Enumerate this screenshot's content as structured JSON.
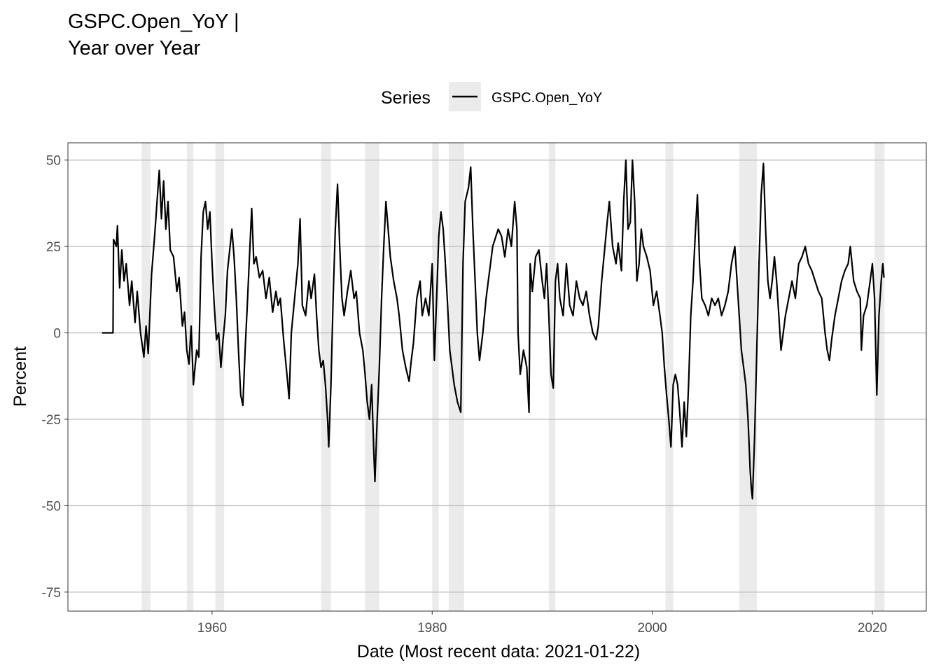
{
  "chart_data": {
    "type": "line",
    "title": [
      "GSPC.Open_YoY |",
      "Year over Year"
    ],
    "xlabel": "Date (Most recent data: 2021-01-22)",
    "ylabel": "Percent",
    "xlim": [
      1946.9,
      2024.9
    ],
    "ylim": [
      -80.5,
      55
    ],
    "xticks": [
      1960,
      1980,
      2000,
      2020
    ],
    "yticks": [
      50,
      25,
      0,
      -25,
      -50,
      -75
    ],
    "grid": "major y lines",
    "legend": {
      "title": "Series",
      "position": "top",
      "entries": [
        "GSPC.Open_YoY"
      ]
    },
    "recession_shading": [
      [
        1953.6,
        1954.4
      ],
      [
        1957.7,
        1958.3
      ],
      [
        1960.3,
        1961.1
      ],
      [
        1969.9,
        1970.8
      ],
      [
        1973.9,
        1975.2
      ],
      [
        1980.0,
        1980.6
      ],
      [
        1981.5,
        1982.9
      ],
      [
        1990.6,
        1991.2
      ],
      [
        2001.2,
        2001.9
      ],
      [
        2007.9,
        2009.5
      ],
      [
        2020.2,
        2021.1
      ]
    ],
    "series": [
      {
        "name": "GSPC.Open_YoY",
        "color": "#000000",
        "points": [
          [
            1950.0,
            0
          ],
          [
            1951.0,
            0
          ],
          [
            1951.05,
            27
          ],
          [
            1951.3,
            25
          ],
          [
            1951.4,
            31
          ],
          [
            1951.6,
            13
          ],
          [
            1951.8,
            24
          ],
          [
            1952.0,
            15
          ],
          [
            1952.2,
            20
          ],
          [
            1952.5,
            8
          ],
          [
            1952.7,
            15
          ],
          [
            1953.0,
            3
          ],
          [
            1953.2,
            12
          ],
          [
            1953.5,
            0
          ],
          [
            1953.8,
            -7
          ],
          [
            1954.0,
            2
          ],
          [
            1954.2,
            -6
          ],
          [
            1954.5,
            17
          ],
          [
            1954.8,
            29
          ],
          [
            1955.0,
            38
          ],
          [
            1955.2,
            47
          ],
          [
            1955.4,
            33
          ],
          [
            1955.6,
            44
          ],
          [
            1955.8,
            30
          ],
          [
            1956.0,
            38
          ],
          [
            1956.2,
            24
          ],
          [
            1956.5,
            22
          ],
          [
            1956.8,
            12
          ],
          [
            1957.0,
            16
          ],
          [
            1957.3,
            2
          ],
          [
            1957.5,
            6
          ],
          [
            1957.7,
            -5
          ],
          [
            1957.9,
            -9
          ],
          [
            1958.1,
            2
          ],
          [
            1958.3,
            -15
          ],
          [
            1958.6,
            -5
          ],
          [
            1958.8,
            -7
          ],
          [
            1959.0,
            22
          ],
          [
            1959.2,
            35
          ],
          [
            1959.4,
            38
          ],
          [
            1959.6,
            30
          ],
          [
            1959.8,
            35
          ],
          [
            1960.0,
            20
          ],
          [
            1960.2,
            8
          ],
          [
            1960.4,
            -2
          ],
          [
            1960.6,
            0
          ],
          [
            1960.8,
            -10
          ],
          [
            1961.0,
            -2
          ],
          [
            1961.2,
            5
          ],
          [
            1961.4,
            18
          ],
          [
            1961.6,
            24
          ],
          [
            1961.8,
            30
          ],
          [
            1962.0,
            22
          ],
          [
            1962.2,
            10
          ],
          [
            1962.4,
            -5
          ],
          [
            1962.6,
            -18
          ],
          [
            1962.8,
            -21
          ],
          [
            1963.0,
            -5
          ],
          [
            1963.2,
            8
          ],
          [
            1963.4,
            22
          ],
          [
            1963.6,
            36
          ],
          [
            1963.8,
            20
          ],
          [
            1964.0,
            22
          ],
          [
            1964.3,
            16
          ],
          [
            1964.6,
            18
          ],
          [
            1964.9,
            10
          ],
          [
            1965.2,
            16
          ],
          [
            1965.5,
            6
          ],
          [
            1965.8,
            12
          ],
          [
            1966.0,
            8
          ],
          [
            1966.2,
            10
          ],
          [
            1966.5,
            -2
          ],
          [
            1966.8,
            -12
          ],
          [
            1967.0,
            -19
          ],
          [
            1967.2,
            0
          ],
          [
            1967.5,
            10
          ],
          [
            1967.8,
            20
          ],
          [
            1968.0,
            33
          ],
          [
            1968.2,
            8
          ],
          [
            1968.5,
            5
          ],
          [
            1968.8,
            15
          ],
          [
            1969.0,
            10
          ],
          [
            1969.3,
            17
          ],
          [
            1969.5,
            5
          ],
          [
            1969.7,
            -5
          ],
          [
            1969.9,
            -10
          ],
          [
            1970.1,
            -8
          ],
          [
            1970.3,
            -15
          ],
          [
            1970.5,
            -25
          ],
          [
            1970.6,
            -33
          ],
          [
            1970.8,
            -15
          ],
          [
            1971.0,
            10
          ],
          [
            1971.2,
            30
          ],
          [
            1971.4,
            43
          ],
          [
            1971.6,
            25
          ],
          [
            1971.8,
            10
          ],
          [
            1972.0,
            5
          ],
          [
            1972.3,
            12
          ],
          [
            1972.6,
            18
          ],
          [
            1972.9,
            10
          ],
          [
            1973.1,
            12
          ],
          [
            1973.4,
            0
          ],
          [
            1973.7,
            -5
          ],
          [
            1973.9,
            -12
          ],
          [
            1974.1,
            -20
          ],
          [
            1974.3,
            -25
          ],
          [
            1974.5,
            -15
          ],
          [
            1974.7,
            -35
          ],
          [
            1974.8,
            -43
          ],
          [
            1975.0,
            -25
          ],
          [
            1975.2,
            -10
          ],
          [
            1975.4,
            10
          ],
          [
            1975.6,
            25
          ],
          [
            1975.8,
            38
          ],
          [
            1976.0,
            30
          ],
          [
            1976.2,
            22
          ],
          [
            1976.5,
            15
          ],
          [
            1976.8,
            10
          ],
          [
            1977.0,
            5
          ],
          [
            1977.3,
            -5
          ],
          [
            1977.6,
            -10
          ],
          [
            1977.9,
            -14
          ],
          [
            1978.1,
            -8
          ],
          [
            1978.3,
            -3
          ],
          [
            1978.6,
            10
          ],
          [
            1978.9,
            15
          ],
          [
            1979.1,
            5
          ],
          [
            1979.4,
            10
          ],
          [
            1979.7,
            5
          ],
          [
            1980.0,
            20
          ],
          [
            1980.2,
            -8
          ],
          [
            1980.4,
            10
          ],
          [
            1980.6,
            28
          ],
          [
            1980.8,
            35
          ],
          [
            1981.0,
            30
          ],
          [
            1981.2,
            20
          ],
          [
            1981.4,
            8
          ],
          [
            1981.6,
            -5
          ],
          [
            1981.8,
            -10
          ],
          [
            1982.0,
            -15
          ],
          [
            1982.3,
            -20
          ],
          [
            1982.6,
            -23
          ],
          [
            1982.8,
            20
          ],
          [
            1983.0,
            38
          ],
          [
            1983.3,
            42
          ],
          [
            1983.5,
            48
          ],
          [
            1983.7,
            30
          ],
          [
            1983.9,
            15
          ],
          [
            1984.1,
            0
          ],
          [
            1984.3,
            -8
          ],
          [
            1984.6,
            0
          ],
          [
            1984.9,
            10
          ],
          [
            1985.1,
            15
          ],
          [
            1985.3,
            20
          ],
          [
            1985.5,
            25
          ],
          [
            1985.8,
            28
          ],
          [
            1986.0,
            30
          ],
          [
            1986.3,
            28
          ],
          [
            1986.6,
            22
          ],
          [
            1986.9,
            30
          ],
          [
            1987.2,
            25
          ],
          [
            1987.5,
            38
          ],
          [
            1987.7,
            30
          ],
          [
            1987.8,
            0
          ],
          [
            1988.0,
            -12
          ],
          [
            1988.3,
            -5
          ],
          [
            1988.6,
            -10
          ],
          [
            1988.8,
            -23
          ],
          [
            1988.9,
            20
          ],
          [
            1989.1,
            12
          ],
          [
            1989.4,
            22
          ],
          [
            1989.7,
            24
          ],
          [
            1990.0,
            15
          ],
          [
            1990.2,
            10
          ],
          [
            1990.4,
            20
          ],
          [
            1990.6,
            5
          ],
          [
            1990.8,
            -12
          ],
          [
            1991.0,
            -16
          ],
          [
            1991.2,
            15
          ],
          [
            1991.4,
            20
          ],
          [
            1991.6,
            10
          ],
          [
            1991.9,
            5
          ],
          [
            1992.2,
            20
          ],
          [
            1992.5,
            8
          ],
          [
            1992.8,
            5
          ],
          [
            1993.1,
            15
          ],
          [
            1993.4,
            10
          ],
          [
            1993.7,
            8
          ],
          [
            1994.0,
            12
          ],
          [
            1994.3,
            5
          ],
          [
            1994.6,
            0
          ],
          [
            1994.9,
            -2
          ],
          [
            1995.1,
            2
          ],
          [
            1995.4,
            15
          ],
          [
            1995.7,
            25
          ],
          [
            1995.9,
            32
          ],
          [
            1996.1,
            38
          ],
          [
            1996.4,
            25
          ],
          [
            1996.7,
            20
          ],
          [
            1996.9,
            26
          ],
          [
            1997.2,
            18
          ],
          [
            1997.4,
            38
          ],
          [
            1997.6,
            50
          ],
          [
            1997.8,
            30
          ],
          [
            1998.0,
            32
          ],
          [
            1998.2,
            50
          ],
          [
            1998.4,
            38
          ],
          [
            1998.6,
            15
          ],
          [
            1998.8,
            20
          ],
          [
            1999.0,
            30
          ],
          [
            1999.2,
            25
          ],
          [
            1999.5,
            22
          ],
          [
            1999.8,
            18
          ],
          [
            2000.1,
            8
          ],
          [
            2000.4,
            12
          ],
          [
            2000.7,
            5
          ],
          [
            2000.9,
            0
          ],
          [
            2001.1,
            -10
          ],
          [
            2001.3,
            -18
          ],
          [
            2001.5,
            -25
          ],
          [
            2001.7,
            -33
          ],
          [
            2001.9,
            -15
          ],
          [
            2002.1,
            -12
          ],
          [
            2002.3,
            -15
          ],
          [
            2002.5,
            -23
          ],
          [
            2002.7,
            -33
          ],
          [
            2002.9,
            -20
          ],
          [
            2003.1,
            -30
          ],
          [
            2003.3,
            -15
          ],
          [
            2003.5,
            5
          ],
          [
            2003.7,
            15
          ],
          [
            2003.9,
            28
          ],
          [
            2004.1,
            40
          ],
          [
            2004.3,
            20
          ],
          [
            2004.5,
            10
          ],
          [
            2004.8,
            8
          ],
          [
            2005.1,
            5
          ],
          [
            2005.4,
            10
          ],
          [
            2005.7,
            8
          ],
          [
            2006.0,
            10
          ],
          [
            2006.3,
            5
          ],
          [
            2006.6,
            8
          ],
          [
            2006.9,
            12
          ],
          [
            2007.2,
            20
          ],
          [
            2007.5,
            25
          ],
          [
            2007.7,
            15
          ],
          [
            2007.9,
            5
          ],
          [
            2008.1,
            -5
          ],
          [
            2008.3,
            -10
          ],
          [
            2008.5,
            -15
          ],
          [
            2008.7,
            -25
          ],
          [
            2008.9,
            -40
          ],
          [
            2009.0,
            -45
          ],
          [
            2009.1,
            -48
          ],
          [
            2009.3,
            -30
          ],
          [
            2009.5,
            -5
          ],
          [
            2009.7,
            20
          ],
          [
            2009.9,
            40
          ],
          [
            2010.1,
            49
          ],
          [
            2010.3,
            30
          ],
          [
            2010.5,
            15
          ],
          [
            2010.7,
            10
          ],
          [
            2010.9,
            15
          ],
          [
            2011.1,
            22
          ],
          [
            2011.3,
            15
          ],
          [
            2011.5,
            5
          ],
          [
            2011.7,
            -5
          ],
          [
            2011.9,
            0
          ],
          [
            2012.1,
            5
          ],
          [
            2012.4,
            10
          ],
          [
            2012.7,
            15
          ],
          [
            2013.0,
            10
          ],
          [
            2013.3,
            20
          ],
          [
            2013.6,
            22
          ],
          [
            2013.9,
            25
          ],
          [
            2014.2,
            20
          ],
          [
            2014.5,
            18
          ],
          [
            2014.8,
            15
          ],
          [
            2015.1,
            12
          ],
          [
            2015.4,
            10
          ],
          [
            2015.7,
            0
          ],
          [
            2015.9,
            -5
          ],
          [
            2016.1,
            -8
          ],
          [
            2016.3,
            -2
          ],
          [
            2016.6,
            5
          ],
          [
            2016.9,
            10
          ],
          [
            2017.2,
            15
          ],
          [
            2017.5,
            18
          ],
          [
            2017.8,
            20
          ],
          [
            2018.0,
            25
          ],
          [
            2018.3,
            15
          ],
          [
            2018.6,
            12
          ],
          [
            2018.9,
            10
          ],
          [
            2019.0,
            -5
          ],
          [
            2019.2,
            5
          ],
          [
            2019.5,
            8
          ],
          [
            2019.8,
            15
          ],
          [
            2020.0,
            20
          ],
          [
            2020.2,
            10
          ],
          [
            2020.4,
            -18
          ],
          [
            2020.6,
            5
          ],
          [
            2020.8,
            15
          ],
          [
            2020.95,
            20
          ],
          [
            2021.06,
            16
          ]
        ]
      }
    ]
  }
}
